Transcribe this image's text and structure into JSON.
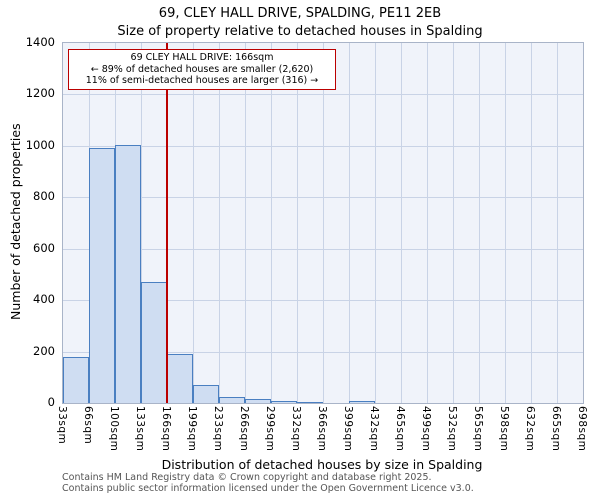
{
  "chart_data": {
    "type": "bar",
    "title": "69, CLEY HALL DRIVE, SPALDING, PE11 2EB",
    "subtitle": "Size of property relative to detached houses in Spalding",
    "xlabel": "Distribution of detached houses by size in Spalding",
    "ylabel": "Number of detached properties",
    "categories": [
      "33sqm",
      "66sqm",
      "100sqm",
      "133sqm",
      "166sqm",
      "199sqm",
      "233sqm",
      "266sqm",
      "299sqm",
      "332sqm",
      "366sqm",
      "399sqm",
      "432sqm",
      "465sqm",
      "499sqm",
      "532sqm",
      "565sqm",
      "598sqm",
      "632sqm",
      "665sqm",
      "698sqm"
    ],
    "values": [
      180,
      990,
      1005,
      470,
      190,
      70,
      25,
      15,
      8,
      5,
      0,
      8,
      0,
      0,
      0,
      0,
      0,
      0,
      0,
      0
    ],
    "ylim": [
      0,
      1400
    ],
    "yticks": [
      0,
      200,
      400,
      600,
      800,
      1000,
      1200,
      1400
    ],
    "grid": true,
    "legend_position": "none",
    "bar_fill": "#cfddf2",
    "bar_border": "#4a7fc1",
    "plot_bg": "#f0f3fa",
    "grid_color": "#c9d3e6",
    "marker_line": {
      "label": "166sqm",
      "x_index": 4,
      "color": "#bb0000"
    }
  },
  "annotation": {
    "line1": "69 CLEY HALL DRIVE: 166sqm",
    "line2": "← 89% of detached houses are smaller (2,620)",
    "line3": "11% of semi-detached houses are larger (316) →"
  },
  "footer": {
    "line1": "Contains HM Land Registry data © Crown copyright and database right 2025.",
    "line2": "Contains public sector information licensed under the Open Government Licence v3.0."
  }
}
